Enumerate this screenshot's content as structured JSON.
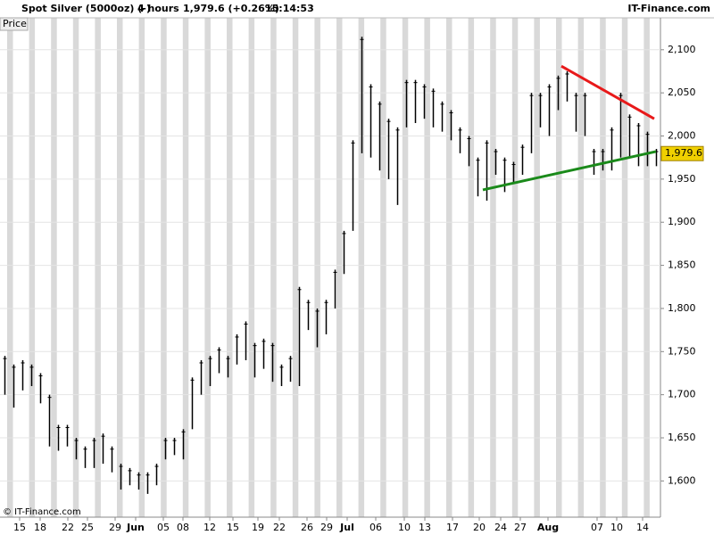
{
  "chart_data": {
    "type": "range",
    "title": "Spot Silver (5000oz) (-)",
    "timeframe": "4 hours",
    "change": "1,979.6 (+0.26%)",
    "time": "15:14:53",
    "brand": "IT-Finance.com",
    "panel_label": "Price",
    "copyright": "© IT-Finance.com",
    "ylim": [
      1558,
      2137
    ],
    "yticks": [
      {
        "value": 1600,
        "label": "1,600"
      },
      {
        "value": 1650,
        "label": "1,650"
      },
      {
        "value": 1700,
        "label": "1,700"
      },
      {
        "value": 1750,
        "label": "1,750"
      },
      {
        "value": 1800,
        "label": "1,800"
      },
      {
        "value": 1850,
        "label": "1,850"
      },
      {
        "value": 1900,
        "label": "1,900"
      },
      {
        "value": 1950,
        "label": "1,950"
      },
      {
        "value": 2000,
        "label": "2,000"
      },
      {
        "value": 2050,
        "label": "2,050"
      },
      {
        "value": 2100,
        "label": "2,100"
      }
    ],
    "xlim": [
      -0.5,
      73.5
    ],
    "xticks": [
      {
        "value": 1.7,
        "label": "15"
      },
      {
        "value": 4.0,
        "label": "18"
      },
      {
        "value": 7.1,
        "label": "22"
      },
      {
        "value": 9.3,
        "label": "25"
      },
      {
        "value": 12.4,
        "label": "29"
      },
      {
        "value": 14.7,
        "label": "Jun"
      },
      {
        "value": 17.8,
        "label": "05"
      },
      {
        "value": 20.0,
        "label": "08"
      },
      {
        "value": 23.0,
        "label": "12"
      },
      {
        "value": 25.6,
        "label": "15"
      },
      {
        "value": 28.4,
        "label": "19"
      },
      {
        "value": 30.8,
        "label": "22"
      },
      {
        "value": 33.9,
        "label": "26"
      },
      {
        "value": 36.1,
        "label": "29"
      },
      {
        "value": 38.4,
        "label": "Jul"
      },
      {
        "value": 41.6,
        "label": "06"
      },
      {
        "value": 44.8,
        "label": "10"
      },
      {
        "value": 47.1,
        "label": "13"
      },
      {
        "value": 50.2,
        "label": "17"
      },
      {
        "value": 53.2,
        "label": "20"
      },
      {
        "value": 55.6,
        "label": "24"
      },
      {
        "value": 57.8,
        "label": "27"
      },
      {
        "value": 60.9,
        "label": "Aug"
      },
      {
        "value": 66.4,
        "label": "07"
      },
      {
        "value": 68.6,
        "label": "10"
      },
      {
        "value": 71.5,
        "label": "14"
      }
    ],
    "color": "#000000",
    "high": [
      1745,
      1735,
      1740,
      1735,
      1725,
      1700,
      1665,
      1665,
      1650,
      1640,
      1650,
      1655,
      1640,
      1620,
      1615,
      1610,
      1610,
      1620,
      1650,
      1650,
      1660,
      1720,
      1740,
      1745,
      1755,
      1745,
      1770,
      1785,
      1760,
      1765,
      1760,
      1735,
      1745,
      1825,
      1810,
      1800,
      1810,
      1845,
      1890,
      1995,
      2115,
      2060,
      2040,
      2020,
      2010,
      2065,
      2065,
      2060,
      2055,
      2040,
      2030,
      2010,
      2000,
      1975,
      1995,
      1985,
      1975,
      1970,
      1990,
      2050,
      2050,
      2060,
      2070,
      2075,
      2050,
      2050,
      1985,
      1985,
      2010,
      2050,
      2025,
      2015,
      2005,
      1985
    ],
    "low": [
      1700,
      1685,
      1705,
      1710,
      1690,
      1640,
      1635,
      1640,
      1625,
      1615,
      1615,
      1620,
      1610,
      1590,
      1595,
      1590,
      1585,
      1595,
      1625,
      1630,
      1625,
      1660,
      1700,
      1710,
      1725,
      1720,
      1735,
      1740,
      1720,
      1730,
      1715,
      1710,
      1715,
      1710,
      1775,
      1755,
      1770,
      1800,
      1840,
      1890,
      1980,
      1975,
      1960,
      1950,
      1920,
      2010,
      2015,
      2020,
      2010,
      2005,
      1995,
      1980,
      1965,
      1930,
      1925,
      1955,
      1935,
      1945,
      1955,
      1980,
      2010,
      2000,
      2030,
      2040,
      2005,
      2000,
      1955,
      1960,
      1960,
      1975,
      1975,
      1965,
      1965,
      1965
    ],
    "last": {
      "value": 1979.6,
      "label": "1,979.6",
      "color": "#f0d000"
    },
    "trendlines": [
      {
        "color": "#e8191a",
        "x": [
          62.4,
          72.8
        ],
        "y": [
          2081,
          2020
        ]
      },
      {
        "color": "#1a8a1a",
        "x": [
          53.6,
          73.0
        ],
        "y": [
          1937.5,
          1982
        ]
      }
    ]
  }
}
